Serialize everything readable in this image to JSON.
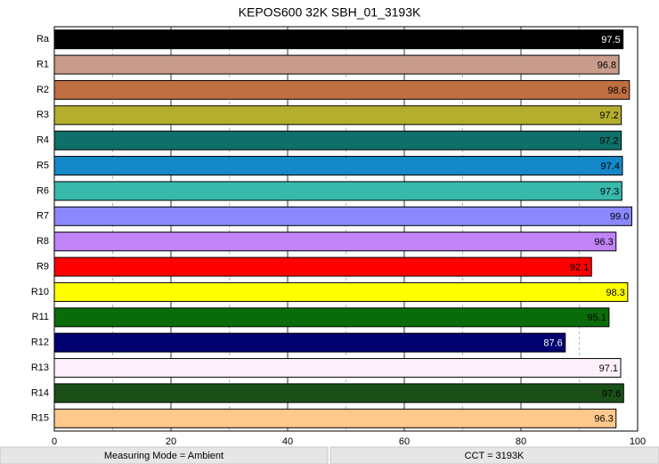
{
  "chart_data": {
    "type": "hbar",
    "title": "KEPOS600 32K SBH_01_3193K",
    "categories": [
      "Ra",
      "R1",
      "R2",
      "R3",
      "R4",
      "R5",
      "R6",
      "R7",
      "R8",
      "R9",
      "R10",
      "R11",
      "R12",
      "R13",
      "R14",
      "R15"
    ],
    "values": [
      97.5,
      96.8,
      98.6,
      97.2,
      97.2,
      97.4,
      97.3,
      99.0,
      96.3,
      92.1,
      98.3,
      95.1,
      87.6,
      97.1,
      97.6,
      96.3
    ],
    "value_labels": [
      "97.5",
      "96.8",
      "98.6",
      "97.2",
      "97.2",
      "97.4",
      "97.3",
      "99.0",
      "96.3",
      "92.1",
      "98.3",
      "95.1",
      "87.6",
      "97.1",
      "97.6",
      "96.3"
    ],
    "colors": [
      "#000000",
      "#c89c8a",
      "#bf6e42",
      "#b4ae2e",
      "#0f7069",
      "#1488c8",
      "#38b9ab",
      "#8a88fc",
      "#c084f8",
      "#ff0000",
      "#ffff00",
      "#0a6b0a",
      "#000070",
      "#fff0fc",
      "#1a5018",
      "#ffc88c"
    ],
    "xlim": [
      0,
      100
    ],
    "xticks": [
      0,
      20,
      40,
      60,
      80,
      100
    ],
    "minor_grid": [
      10,
      30,
      50,
      70,
      90
    ],
    "grid": true
  },
  "footer": [
    "Measuring Mode = Ambient",
    "CCT = 3193K"
  ]
}
